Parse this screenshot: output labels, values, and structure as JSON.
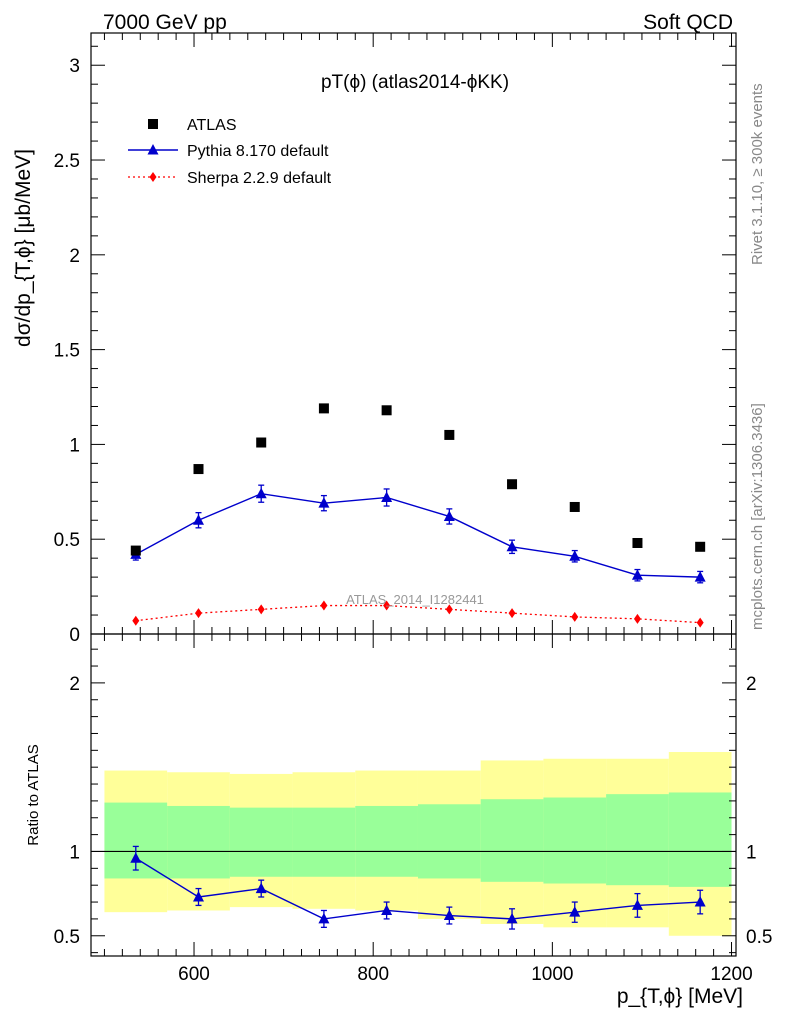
{
  "header": {
    "left": "7000 GeV pp",
    "right": "Soft QCD"
  },
  "side": {
    "rivet": "Rivet 3.1.10, ≥ 300k events",
    "mcplots": "mcplots.cern.ch [arXiv:1306.3436]"
  },
  "chart_data": [
    {
      "type": "scatter",
      "title": "pT(ϕ) (atlas2014-ϕKK)",
      "watermark": "ATLAS_2014_I1282441",
      "xlabel": "p_{T,ϕ} [MeV]",
      "ylabel": "dσ/dp_{T,ϕ} [μb/MeV]",
      "xlim": [
        485,
        1205
      ],
      "ylim": [
        0,
        3.17
      ],
      "x_ticks": [
        600,
        800,
        1000,
        1200
      ],
      "y_ticks": [
        "0",
        "0.5",
        "1",
        "1.5",
        "2",
        "2.5",
        "3"
      ],
      "y_tick_values": [
        0,
        0.5,
        1,
        1.5,
        2,
        2.5,
        3
      ],
      "legend_position": "top-left",
      "x": [
        535,
        605,
        675,
        745,
        815,
        885,
        955,
        1025,
        1095,
        1165
      ],
      "series": [
        {
          "name": "ATLAS",
          "marker": "square",
          "color": "#000000",
          "values": [
            0.44,
            0.87,
            1.01,
            1.19,
            1.18,
            1.05,
            0.79,
            0.67,
            0.48,
            0.46
          ]
        },
        {
          "name": "Pythia 8.170 default",
          "marker": "triangle",
          "line": "solid",
          "color": "#0000cc",
          "values": [
            0.42,
            0.6,
            0.74,
            0.69,
            0.72,
            0.62,
            0.46,
            0.41,
            0.31,
            0.3
          ],
          "errors": [
            0.03,
            0.04,
            0.045,
            0.04,
            0.045,
            0.04,
            0.035,
            0.03,
            0.03,
            0.03
          ]
        },
        {
          "name": "Sherpa 2.2.9 default",
          "marker": "diamond",
          "line": "dotted",
          "color": "#ff0000",
          "values": [
            0.07,
            0.11,
            0.13,
            0.15,
            0.15,
            0.13,
            0.11,
            0.09,
            0.08,
            0.06
          ]
        }
      ]
    },
    {
      "type": "line",
      "ylabel": "Ratio to ATLAS",
      "xlim": [
        485,
        1205
      ],
      "ylim": [
        0.38,
        2.29
      ],
      "y_ticks": [
        "0.5",
        "1",
        "2"
      ],
      "y_tick_values": [
        0.5,
        1,
        2
      ],
      "reference_line": 1,
      "bins": [
        [
          500,
          570
        ],
        [
          570,
          640
        ],
        [
          640,
          710
        ],
        [
          710,
          780
        ],
        [
          780,
          850
        ],
        [
          850,
          920
        ],
        [
          920,
          990
        ],
        [
          990,
          1060
        ],
        [
          1060,
          1130
        ],
        [
          1130,
          1200
        ]
      ],
      "bands": [
        {
          "name": "outer uncertainty",
          "color": "#ffff99",
          "low": [
            0.64,
            0.65,
            0.67,
            0.66,
            0.65,
            0.6,
            0.57,
            0.55,
            0.55,
            0.5
          ],
          "high": [
            1.48,
            1.47,
            1.46,
            1.47,
            1.48,
            1.48,
            1.54,
            1.55,
            1.55,
            1.59
          ]
        },
        {
          "name": "inner uncertainty",
          "color": "#99ff99",
          "low": [
            0.84,
            0.84,
            0.85,
            0.85,
            0.85,
            0.84,
            0.82,
            0.81,
            0.8,
            0.79
          ],
          "high": [
            1.29,
            1.27,
            1.26,
            1.26,
            1.27,
            1.28,
            1.31,
            1.32,
            1.34,
            1.35
          ]
        }
      ],
      "x": [
        535,
        605,
        675,
        745,
        815,
        885,
        955,
        1025,
        1095,
        1165
      ],
      "series": [
        {
          "name": "Pythia 8.170 default",
          "color": "#0000cc",
          "values": [
            0.96,
            0.73,
            0.78,
            0.6,
            0.65,
            0.62,
            0.6,
            0.64,
            0.68,
            0.7
          ],
          "errors": [
            0.07,
            0.05,
            0.05,
            0.05,
            0.05,
            0.05,
            0.06,
            0.06,
            0.07,
            0.07
          ]
        }
      ]
    }
  ]
}
